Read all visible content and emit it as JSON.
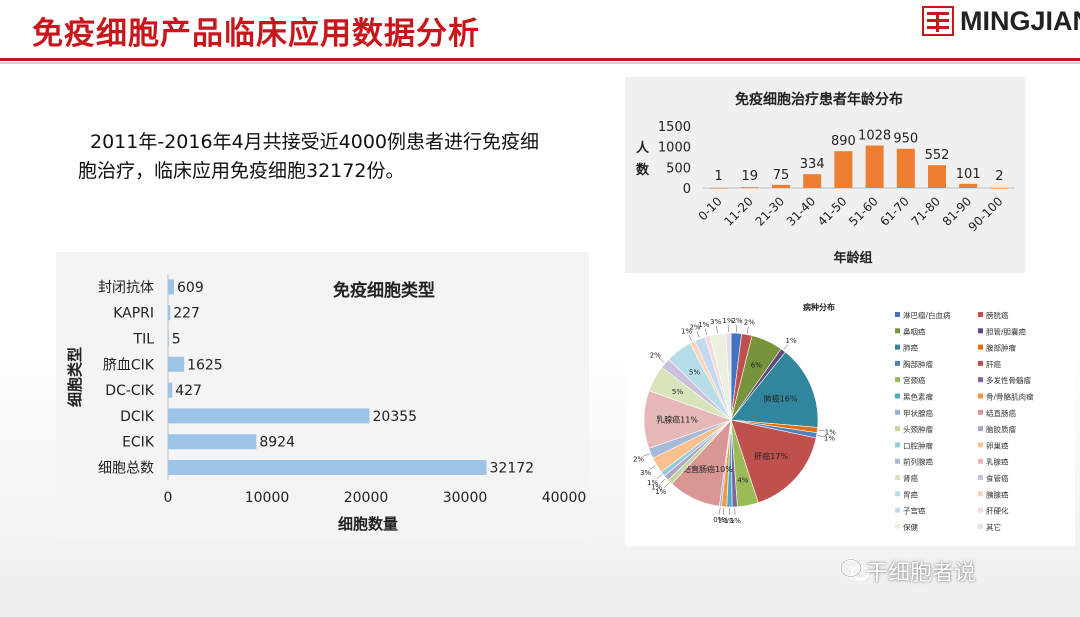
{
  "header": {
    "title": "免疫细胞产品临床应用数据分析",
    "logo": "MINGJIAN"
  },
  "intro_text": "2011年-2016年4月共接受近4000例患者进行免疫细胞治疗，临床应用免疫细胞32172份。",
  "watermark": "干细胞者说",
  "chart_data": [
    {
      "type": "bar",
      "orientation": "horizontal",
      "title": "免疫细胞类型",
      "xlabel": "细胞数量",
      "ylabel": "细胞类型",
      "categories": [
        "封闭抗体",
        "KAPRI",
        "TIL",
        "脐血CIK",
        "DC-CIK",
        "DCIK",
        "ECIK",
        "细胞总数"
      ],
      "values": [
        609,
        227,
        5,
        1625,
        427,
        20355,
        8924,
        32172
      ],
      "xlim": [
        0,
        40000
      ],
      "xticks": [
        "0",
        "10000",
        "20000",
        "30000",
        "40000"
      ],
      "color": "#9dc3e6"
    },
    {
      "type": "bar",
      "title": "免疫细胞治疗患者年龄分布",
      "xlabel": "年龄组",
      "ylabel": "人数",
      "categories": [
        "0-10",
        "11-20",
        "21-30",
        "31-40",
        "41-50",
        "51-60",
        "61-70",
        "71-80",
        "81-90",
        "90-100"
      ],
      "values": [
        1,
        19,
        75,
        334,
        890,
        1028,
        950,
        552,
        101,
        2
      ],
      "ylim": [
        0,
        1500
      ],
      "yticks": [
        "1500",
        "1000",
        "500",
        "0"
      ],
      "color": "#ed7d31"
    },
    {
      "type": "pie",
      "title": "病种分布",
      "labels": [
        "淋巴瘤/白血病",
        "膀胱癌",
        "鼻咽癌",
        "胆管/胆囊癌",
        "肺癌",
        "腹部肿瘤",
        "胸部肿瘤",
        "肝癌",
        "宫颈癌",
        "多发性骨髓瘤",
        "黑色素瘤",
        "骨/骨骼肌肉瘤",
        "甲状腺癌",
        "结直肠癌",
        "头颈肿瘤",
        "脑胶质瘤",
        "口腔肿瘤",
        "卵巢癌",
        "前列腺癌",
        "乳腺癌",
        "肾癌",
        "食管癌",
        "胃癌",
        "胰腺癌",
        "子宫癌",
        "肝硬化",
        "保健",
        "其它"
      ],
      "colors": [
        "#4472c4",
        "#c0504d",
        "#77933c",
        "#5f497a",
        "#31859c",
        "#e46c0a",
        "#4f81bd",
        "#c0504d",
        "#9bbb59",
        "#8064a2",
        "#4bacc6",
        "#f79646",
        "#95b3d7",
        "#d99694",
        "#c3d69b",
        "#b3a2c7",
        "#93cddd",
        "#fac090",
        "#a6b9d9",
        "#e6b9b8",
        "#d7e4bc",
        "#ccc1da",
        "#b7dee8",
        "#fcd5b4",
        "#c5d9f1",
        "#f2dcdb",
        "#ebf1de",
        "#e5e0ec"
      ],
      "segments": [
        {
          "value": 2,
          "label": "2%"
        },
        {
          "value": 2,
          "label": "2%"
        },
        {
          "value": 6,
          "label": "6%"
        },
        {
          "value": 1,
          "label": "1%"
        },
        {
          "value": 16,
          "label": "肺癌16%"
        },
        {
          "value": 1,
          "label": "1%"
        },
        {
          "value": 1,
          "label": "1%"
        },
        {
          "value": 17,
          "label": "肝癌17%"
        },
        {
          "value": 4,
          "label": "4%"
        },
        {
          "value": 1,
          "label": "1%"
        },
        {
          "value": 1,
          "label": "1%"
        },
        {
          "value": 1,
          "label": "1%"
        },
        {
          "value": 0.4,
          "label": "0%"
        },
        {
          "value": 10,
          "label": "结直肠癌10%"
        },
        {
          "value": 1,
          "label": "1%"
        },
        {
          "value": 1,
          "label": "1%"
        },
        {
          "value": 1,
          "label": "1%"
        },
        {
          "value": 3,
          "label": "3%"
        },
        {
          "value": 2,
          "label": "2%"
        },
        {
          "value": 11,
          "label": "乳腺癌11%"
        },
        {
          "value": 5,
          "label": "5%"
        },
        {
          "value": 2,
          "label": "2%"
        },
        {
          "value": 5,
          "label": "5%"
        },
        {
          "value": 1,
          "label": "1%"
        },
        {
          "value": 2,
          "label": "2%"
        },
        {
          "value": 1,
          "label": "1%"
        },
        {
          "value": 3,
          "label": "3%"
        },
        {
          "value": 1,
          "label": "1%"
        }
      ]
    }
  ]
}
